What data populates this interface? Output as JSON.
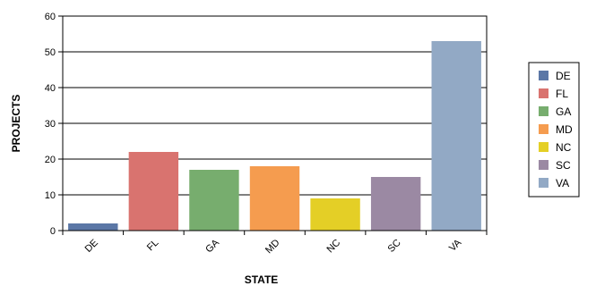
{
  "chart_data": {
    "type": "bar",
    "xlabel": "STATE",
    "ylabel": "PROJECTS",
    "ylim": [
      0,
      60
    ],
    "yticks": [
      0,
      10,
      20,
      30,
      40,
      50,
      60
    ],
    "grid": true,
    "legend": "right",
    "categories": [
      "DE",
      "FL",
      "GA",
      "MD",
      "NC",
      "SC",
      "VA"
    ],
    "values": [
      2,
      22,
      17,
      18,
      9,
      15,
      53
    ],
    "colors": [
      "#5b77a6",
      "#d9736f",
      "#77ad6e",
      "#f59c4f",
      "#e4cf26",
      "#9b89a3",
      "#92a9c5"
    ],
    "legend_entries": [
      "DE",
      "FL",
      "GA",
      "MD",
      "NC",
      "SC",
      "VA"
    ]
  }
}
